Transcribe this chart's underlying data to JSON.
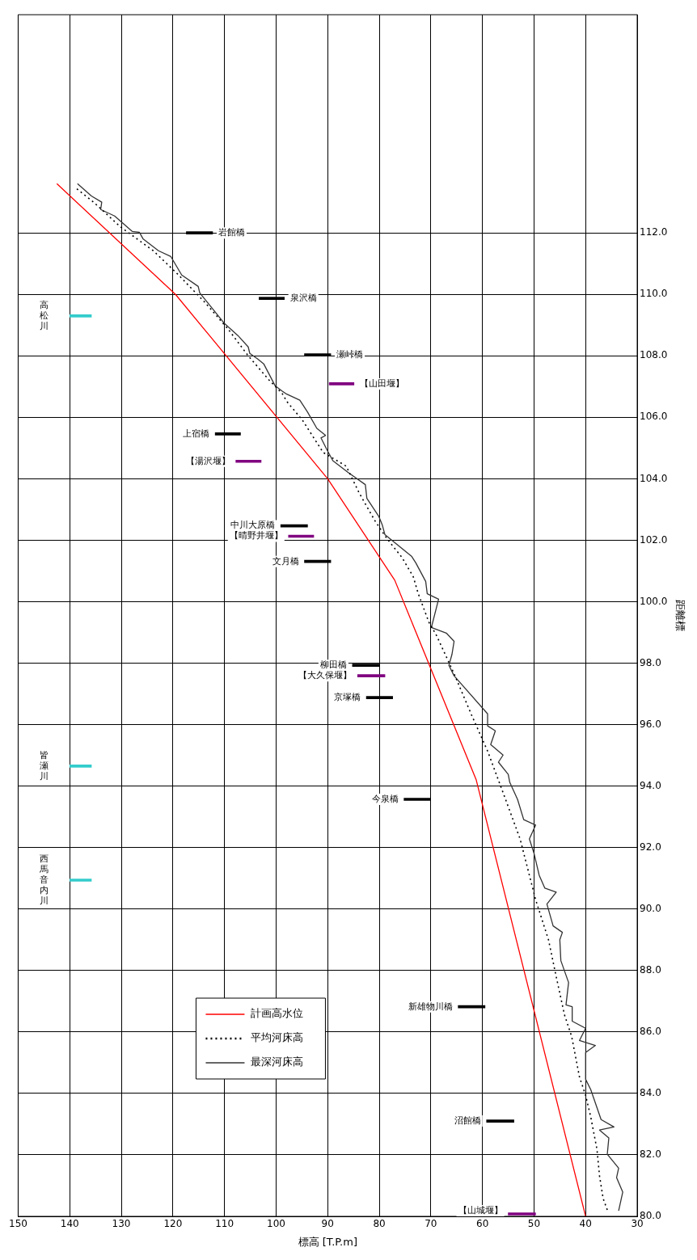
{
  "chart_data": {
    "type": "line",
    "orientation": "horizontal",
    "xlabel": "標高 [T.P.m]",
    "ylabel": "距離標",
    "xlim": [
      150,
      30
    ],
    "ylim": [
      80,
      119.1
    ],
    "xticks": [
      150,
      140,
      130,
      120,
      110,
      100,
      90,
      80,
      70,
      60,
      50,
      40,
      30
    ],
    "yticks": [
      {
        "value": 80,
        "label": "80.0"
      },
      {
        "value": 82,
        "label": "82.0"
      },
      {
        "value": 84,
        "label": "84.0"
      },
      {
        "value": 86,
        "label": "86.0"
      },
      {
        "value": 88,
        "label": "88.0"
      },
      {
        "value": 90,
        "label": "90.0"
      },
      {
        "value": 92,
        "label": "92.0"
      },
      {
        "value": 94,
        "label": "94.0"
      },
      {
        "value": 96,
        "label": "96.0"
      },
      {
        "value": 98,
        "label": "98.0"
      },
      {
        "value": 100,
        "label": "100.0"
      },
      {
        "value": 102,
        "label": "102.0"
      },
      {
        "value": 104,
        "label": "104.0"
      },
      {
        "value": 106,
        "label": "106.0"
      },
      {
        "value": 108,
        "label": "108.0"
      },
      {
        "value": 110,
        "label": "110.0"
      },
      {
        "value": 112,
        "label": "112.0"
      }
    ],
    "grid": true,
    "legend": "bottom left",
    "marker": "none",
    "series": [
      {
        "name": "計画高水位",
        "color": "#ff0000",
        "line_style": "solid",
        "x": [
          80,
          94.2,
          100.7,
          104,
          110,
          113.6
        ],
        "values": [
          40,
          61.2,
          77,
          90,
          119.5,
          142.5
        ]
      },
      {
        "name": "平均河床高",
        "color": "#000000",
        "line_style": "dotted",
        "x": [
          80.21,
          80.58,
          81.31,
          82.18,
          83.23,
          83.94,
          84.54,
          85.85,
          86.56,
          87.8,
          89.0,
          90.31,
          92.28,
          93.65,
          95.14,
          96.27,
          97.66,
          98.9,
          99.34,
          100.29,
          100.81,
          101.44,
          102.05,
          102.65,
          103.54,
          104.41,
          104.86,
          105.91,
          106.51,
          106.77,
          107.22,
          108.0,
          108.87,
          109.74,
          110.63,
          111.42,
          112.2,
          112.99,
          113.46
        ],
        "values": [
          35.8,
          36.6,
          37.3,
          37.8,
          39.0,
          40.0,
          41.2,
          42.7,
          44.1,
          45.7,
          47.2,
          49.7,
          52.7,
          55.7,
          59.0,
          62.0,
          65.5,
          68.9,
          70.4,
          72.5,
          73.4,
          75.6,
          78.5,
          80.9,
          83.9,
          86.4,
          90.9,
          94.9,
          97.9,
          98.8,
          101.4,
          105.4,
          109.3,
          113.8,
          118.9,
          123.8,
          130.2,
          135.3,
          138.8
        ]
      },
      {
        "name": "最深河床高",
        "color": "#333333",
        "line_style": "solid",
        "x": [
          80.18,
          80.79,
          81.26,
          81.57,
          82.02,
          82.55,
          82.81,
          82.91,
          83.15,
          84.12,
          84.46,
          85.33,
          85.56,
          85.72,
          86.12,
          86.35,
          86.82,
          86.88,
          87.61,
          88.32,
          89.0,
          89.24,
          89.45,
          90.16,
          90.55,
          90.68,
          91.1,
          91.81,
          92.28,
          92.73,
          92.91,
          93.57,
          94.12,
          94.38,
          94.78,
          95.01,
          95.35,
          95.8,
          95.96,
          96.35,
          97.59,
          97.93,
          98.29,
          98.71,
          98.98,
          99.16,
          100.08,
          100.26,
          100.66,
          101.26,
          101.47,
          102.18,
          102.49,
          102.78,
          103.36,
          103.81,
          104.2,
          104.59,
          104.93,
          105.33,
          105.41,
          105.64,
          106.17,
          106.56,
          106.77,
          106.85,
          107.03,
          107.74,
          107.9,
          108.08,
          108.29,
          108.66,
          109.05,
          109.53,
          110.05,
          110.26,
          110.63,
          111.23,
          111.42,
          111.81,
          112.02,
          112.05,
          112.55,
          112.76,
          113.0,
          113.2,
          113.6
        ],
        "values": [
          33.6,
          32.8,
          34.0,
          33.6,
          35.8,
          35.5,
          37.3,
          34.5,
          37.0,
          39.0,
          40.0,
          40.0,
          38.1,
          41.2,
          40.0,
          42.6,
          42.6,
          43.8,
          43.3,
          44.8,
          45.0,
          44.5,
          46.3,
          47.5,
          45.7,
          47.9,
          49.0,
          50.0,
          50.9,
          49.7,
          52.0,
          53.2,
          54.7,
          55.0,
          56.9,
          56.0,
          58.4,
          57.5,
          59.0,
          59.0,
          65.5,
          66.5,
          65.9,
          65.5,
          67.0,
          69.9,
          68.5,
          70.7,
          71.0,
          72.9,
          73.7,
          78.9,
          79.4,
          80.1,
          82.4,
          82.7,
          86.0,
          89.0,
          90.1,
          91.3,
          90.4,
          92.1,
          93.9,
          95.4,
          98.1,
          98.8,
          100.2,
          102.4,
          103.6,
          105.1,
          105.4,
          107.4,
          110.0,
          112.3,
          114.8,
          115.1,
          118.3,
          120.4,
          122.8,
          125.8,
          126.5,
          127.9,
          131.3,
          134.0,
          133.8,
          135.8,
          138.5
        ]
      },
      {
        "type": "bar",
        "name": "岩館橋",
        "color": "#000000",
        "x": [
          112.0
        ],
        "base": [
          112.3
        ],
        "values": [
          5.1
        ]
      },
      {
        "type": "bar",
        "name": "泉沢橋",
        "color": "#000000",
        "x": [
          109.87
        ],
        "base": [
          98.4
        ],
        "values": [
          4.9
        ]
      },
      {
        "type": "bar",
        "name": "瀬峠橋",
        "color": "#000000",
        "x": [
          108.03
        ],
        "base": [
          89.4
        ],
        "values": [
          5.1
        ]
      },
      {
        "type": "bar",
        "name": "【山田堰】",
        "color": "#800080",
        "x": [
          107.09
        ],
        "base": [
          84.9
        ],
        "values": [
          4.8
        ]
      },
      {
        "type": "bar",
        "name": "上宿橋",
        "color": "#000000",
        "x": [
          105.46
        ],
        "base": [
          106.9
        ],
        "values": [
          4.9
        ]
      },
      {
        "type": "bar",
        "name": "【湯沢堰】",
        "color": "#800080",
        "x": [
          104.57
        ],
        "base": [
          102.9
        ],
        "values": [
          4.9
        ]
      },
      {
        "type": "bar",
        "name": "中川大原橋",
        "color": "#000000",
        "x": [
          102.47
        ],
        "base": [
          93.9
        ],
        "values": [
          5.2
        ]
      },
      {
        "type": "bar",
        "name": "【晴野井堰】",
        "color": "#800080",
        "x": [
          102.13
        ],
        "base": [
          92.7
        ],
        "values": [
          4.9
        ]
      },
      {
        "type": "bar",
        "name": "文月橋",
        "color": "#000000",
        "x": [
          101.31
        ],
        "base": [
          89.4
        ],
        "values": [
          5.1
        ]
      },
      {
        "type": "bar",
        "name": "柳田橋",
        "color": "#000000",
        "x": [
          97.93
        ],
        "base": [
          80.0
        ],
        "values": [
          5.2
        ]
      },
      {
        "type": "bar",
        "name": "【大久保堰】",
        "color": "#800080",
        "x": [
          97.59
        ],
        "base": [
          78.9
        ],
        "values": [
          5.3
        ]
      },
      {
        "type": "bar",
        "name": "京塚橋",
        "color": "#000000",
        "x": [
          96.88
        ],
        "base": [
          77.4
        ],
        "values": [
          5.1
        ]
      },
      {
        "type": "bar",
        "name": "今泉橋",
        "color": "#000000",
        "x": [
          93.57
        ],
        "base": [
          70.1
        ],
        "values": [
          5.1
        ]
      },
      {
        "type": "bar",
        "name": "新雄物川橋",
        "color": "#000000",
        "x": [
          86.82
        ],
        "base": [
          59.5
        ],
        "values": [
          5.2
        ]
      },
      {
        "type": "bar",
        "name": "沼館橋",
        "color": "#000000",
        "x": [
          83.1
        ],
        "base": [
          53.9
        ],
        "values": [
          5.3
        ]
      },
      {
        "type": "bar",
        "name": "【山城堰】",
        "color": "#800080",
        "x": [
          80.08
        ],
        "base": [
          49.7
        ],
        "values": [
          5.3
        ]
      },
      {
        "type": "bar",
        "name": "高松川",
        "color": "#33cccc",
        "x": [
          109.3
        ],
        "base": [
          135.8
        ],
        "values": [
          4.2
        ]
      },
      {
        "type": "bar",
        "name": "皆瀬川",
        "color": "#33cccc",
        "x": [
          94.65
        ],
        "base": [
          135.8
        ],
        "values": [
          4.2
        ]
      },
      {
        "type": "bar",
        "name": "西馬音内川",
        "color": "#33cccc",
        "x": [
          90.94
        ],
        "base": [
          135.8
        ],
        "values": [
          4.2
        ]
      }
    ]
  }
}
